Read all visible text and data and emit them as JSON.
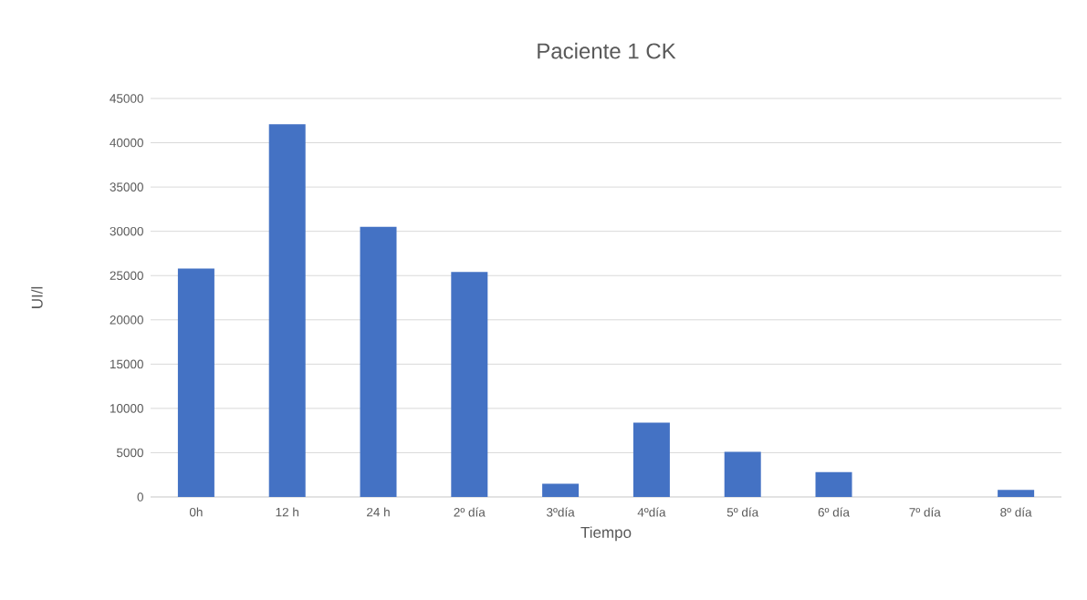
{
  "chart_data": {
    "type": "bar",
    "title": "Paciente 1 CK",
    "xlabel": "Tiempo",
    "ylabel": "UI/l",
    "categories": [
      "0h",
      "12 h",
      "24 h",
      "2º día",
      "3ºdía",
      "4ºdía",
      "5º día",
      "6º día",
      "7º día",
      "8º día"
    ],
    "values": [
      25800,
      42100,
      30500,
      25400,
      1500,
      8400,
      5100,
      2800,
      0,
      800
    ],
    "color": "#4472c4",
    "ylim": [
      0,
      45000
    ],
    "yticks": [
      0,
      5000,
      10000,
      15000,
      20000,
      25000,
      30000,
      35000,
      40000,
      45000
    ],
    "grid": "y"
  }
}
